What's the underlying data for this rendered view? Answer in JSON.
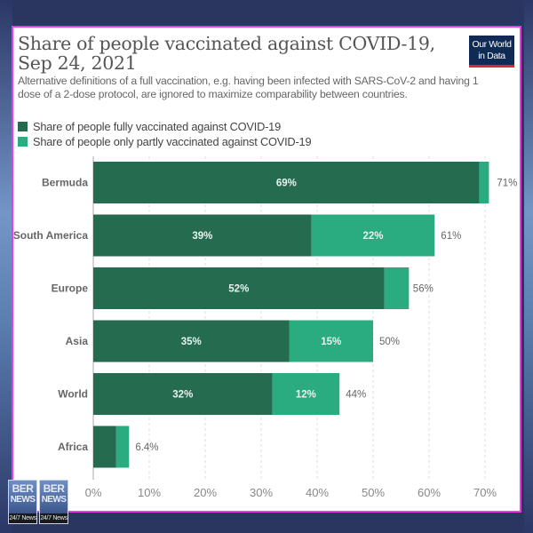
{
  "title": "Share of people vaccinated against COVID-19, Sep 24, 2021",
  "subtitle": "Alternative definitions of a full vaccination, e.g. having been infected with SARS-CoV-2 and having 1 dose of a 2-dose protocol, are ignored to maximize comparability between countries.",
  "logo": {
    "line1": "Our World",
    "line2": "in Data"
  },
  "legend": [
    {
      "label": "Share of people fully vaccinated against COVID-19",
      "color": "#246b50"
    },
    {
      "label": "Share of people only partly vaccinated against COVID-19",
      "color": "#2aab80"
    }
  ],
  "watermark": {
    "panels": [
      {
        "top": "BER",
        "mid": "NEWS",
        "bot": "24/7 News"
      },
      {
        "top": "BER",
        "mid": "NEWS",
        "bot": "24/7 News"
      }
    ]
  },
  "chart_data": {
    "type": "bar",
    "orientation": "horizontal",
    "stacked": true,
    "title": "Share of people vaccinated against COVID-19, Sep 24, 2021",
    "xlabel": "",
    "ylabel": "",
    "xlim": [
      0,
      70
    ],
    "x_ticks": [
      "0%",
      "10%",
      "20%",
      "30%",
      "40%",
      "50%",
      "60%",
      "70%"
    ],
    "x_tick_values": [
      0,
      10,
      20,
      30,
      40,
      50,
      60,
      70
    ],
    "grid": "vertical dashed",
    "legend_position": "top-left",
    "categories": [
      "Bermuda",
      "South America",
      "Europe",
      "Asia",
      "World",
      "Africa"
    ],
    "series": [
      {
        "name": "Share of people fully vaccinated against COVID-19",
        "color": "#246b50",
        "values": [
          69,
          39,
          52,
          35,
          32,
          4.1
        ],
        "labels": [
          "69%",
          "39%",
          "52%",
          "35%",
          "32%",
          ""
        ]
      },
      {
        "name": "Share of people only partly vaccinated against COVID-19",
        "color": "#2aab80",
        "values": [
          1.7,
          22,
          4.4,
          15,
          12,
          2.3
        ],
        "labels": [
          "",
          "22%",
          "",
          "15%",
          "12%",
          ""
        ]
      }
    ],
    "totals": [
      71,
      61,
      56,
      50,
      44,
      6.4
    ],
    "total_labels": [
      "71%",
      "61%",
      "56%",
      "50%",
      "44%",
      "6.4%"
    ]
  }
}
